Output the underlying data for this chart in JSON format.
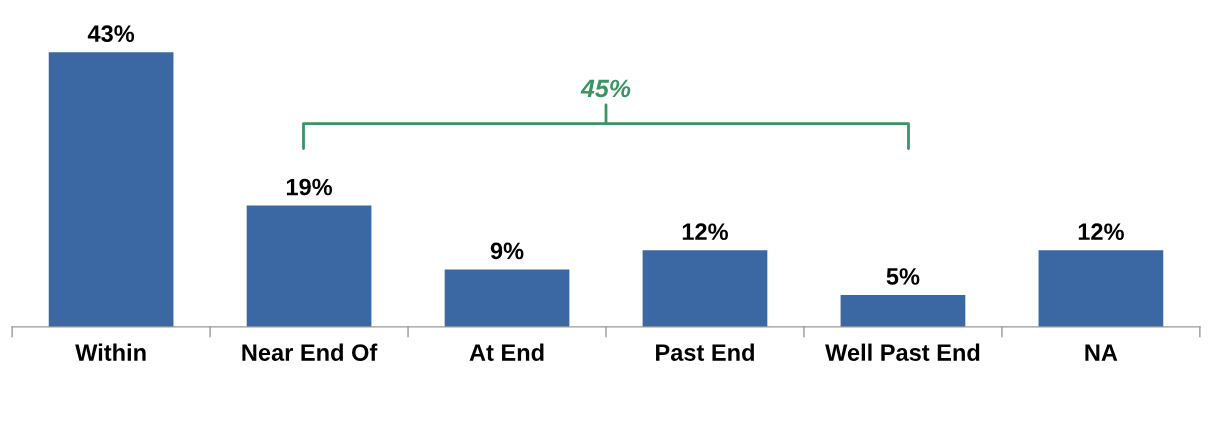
{
  "chart_data": {
    "type": "bar",
    "categories": [
      "Within",
      "Near End Of",
      "At End",
      "Past End",
      "Well Past End",
      "NA"
    ],
    "values": [
      43,
      19,
      9,
      12,
      5,
      12
    ],
    "value_labels": [
      "43%",
      "19%",
      "9%",
      "12%",
      "5%",
      "12%"
    ],
    "color": "#3b67a3",
    "annotations": [
      "45%"
    ],
    "grid": false,
    "legend": false
  }
}
